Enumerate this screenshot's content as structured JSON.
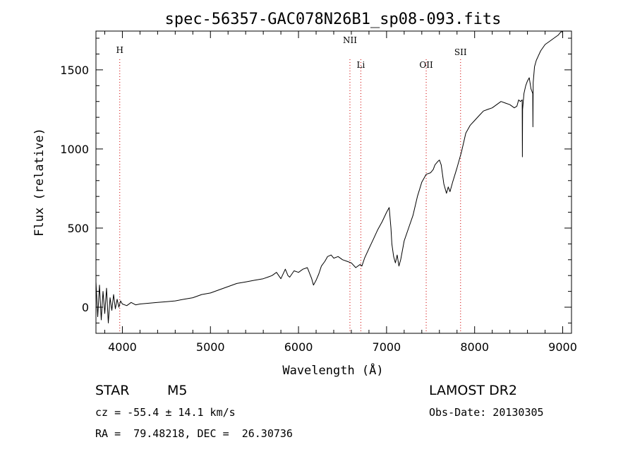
{
  "chart_data": {
    "type": "line",
    "title": "spec-56357-GAC078N26B1_sp08-093.fits",
    "xlabel": "Wavelength (Å)",
    "ylabel": "Flux (relative)",
    "xlim": [
      3700,
      9100
    ],
    "ylim": [
      -165,
      1745
    ],
    "x_ticks": [
      4000,
      5000,
      6000,
      7000,
      8000,
      9000
    ],
    "y_ticks": [
      0,
      500,
      1000,
      1500
    ],
    "grid": false,
    "line_markers": [
      {
        "label": "H",
        "x": 3970
      },
      {
        "label": "NII",
        "x": 6584
      },
      {
        "label": "Li",
        "x": 6708
      },
      {
        "label": "OII",
        "x": 7450
      },
      {
        "label": "SII",
        "x": 7840
      }
    ],
    "series": [
      {
        "x": [
          3700,
          3720,
          3740,
          3760,
          3780,
          3800,
          3820,
          3840,
          3860,
          3880,
          3900,
          3920,
          3940,
          3960,
          3980,
          4000,
          4050,
          4100,
          4150,
          4200,
          4300,
          4400,
          4500,
          4600,
          4700,
          4800,
          4900,
          5000,
          5100,
          5200,
          5300,
          5400,
          5500,
          5600,
          5650,
          5700,
          5750,
          5800,
          5850,
          5880,
          5900,
          5950,
          6000,
          6050,
          6100,
          6150,
          6160,
          6170,
          6200,
          6230,
          6260,
          6300,
          6330,
          6370,
          6400,
          6450,
          6500,
          6550,
          6600,
          6650,
          6700,
          6720,
          6750,
          6800,
          6850,
          6900,
          6950,
          7000,
          7030,
          7050,
          7060,
          7080,
          7100,
          7120,
          7140,
          7160,
          7180,
          7200,
          7250,
          7300,
          7350,
          7400,
          7450,
          7500,
          7530,
          7550,
          7580,
          7600,
          7620,
          7650,
          7680,
          7700,
          7720,
          7750,
          7800,
          7850,
          7900,
          7950,
          8000,
          8050,
          8100,
          8150,
          8200,
          8250,
          8300,
          8350,
          8400,
          8450,
          8480,
          8500,
          8520,
          8540,
          8542,
          8545,
          8560,
          8580,
          8600,
          8620,
          8640,
          8660,
          8662,
          8665,
          8680,
          8700,
          8750,
          8800,
          8850,
          8900,
          8950,
          8980,
          9000
        ],
        "y": [
          160,
          -60,
          140,
          -80,
          100,
          -40,
          120,
          -100,
          60,
          -20,
          80,
          -10,
          50,
          0,
          40,
          20,
          10,
          30,
          15,
          20,
          25,
          30,
          35,
          40,
          50,
          60,
          80,
          90,
          110,
          130,
          150,
          160,
          170,
          180,
          190,
          200,
          220,
          180,
          240,
          200,
          190,
          230,
          220,
          240,
          250,
          180,
          160,
          140,
          170,
          210,
          260,
          290,
          320,
          330,
          310,
          320,
          300,
          290,
          280,
          250,
          270,
          260,
          310,
          370,
          430,
          490,
          540,
          600,
          630,
          500,
          400,
          320,
          280,
          330,
          260,
          300,
          360,
          420,
          500,
          580,
          700,
          790,
          840,
          850,
          870,
          900,
          920,
          930,
          900,
          780,
          720,
          760,
          730,
          790,
          880,
          980,
          1100,
          1150,
          1180,
          1210,
          1240,
          1250,
          1260,
          1280,
          1300,
          1290,
          1280,
          1260,
          1270,
          1310,
          1300,
          1310,
          950,
          1250,
          1350,
          1400,
          1430,
          1450,
          1380,
          1350,
          1140,
          1420,
          1520,
          1560,
          1620,
          1660,
          1680,
          1700,
          1720,
          1740,
          1740
        ]
      }
    ]
  },
  "footer": {
    "object_class": "STAR",
    "subclass": "M5",
    "redshift": "cz = -55.4 ± 14.1 km/s",
    "coords": "RA =  79.48218, DEC =  26.30736",
    "survey": "LAMOST DR2",
    "obs_date": "Obs-Date: 20130305"
  },
  "colors": {
    "spectrum": "#000000",
    "marker": "#d62020",
    "axes": "#000000"
  }
}
